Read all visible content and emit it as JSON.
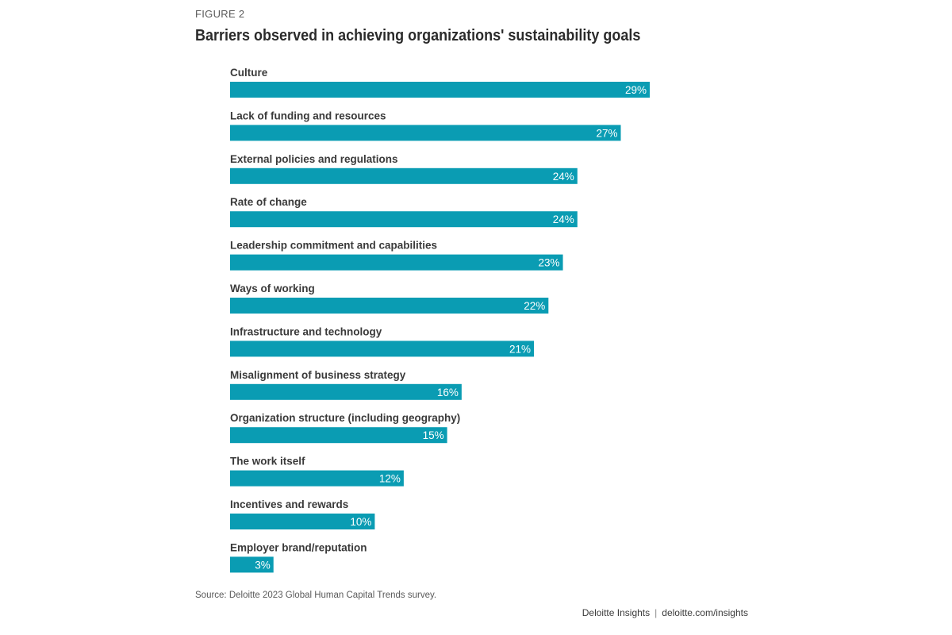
{
  "figure": {
    "label": "FIGURE 2",
    "title": "Barriers observed in achieving organizations' sustainability goals",
    "source": "Source: Deloitte 2023 Global Human Capital Trends survey.",
    "brand": "Deloitte Insights",
    "brand_url": "deloitte.com/insights"
  },
  "colors": {
    "bar": "#0a9cb3",
    "label_text": "#3a3a3a",
    "value_text": "#ffffff"
  },
  "chart_data": {
    "type": "bar",
    "orientation": "horizontal",
    "title": "Barriers observed in achieving organizations' sustainability goals",
    "xlabel": "",
    "ylabel": "",
    "xlim": [
      0,
      30
    ],
    "grid": false,
    "legend": "none",
    "categories": [
      "Culture",
      "Lack of funding and resources",
      "External policies and regulations",
      "Rate of change",
      "Leadership commitment and capabilities",
      "Ways of working",
      "Infrastructure and technology",
      "Misalignment of business strategy",
      "Organization structure (including geography)",
      "The work itself",
      "Incentives and rewards",
      "Employer brand/reputation"
    ],
    "values": [
      29,
      27,
      24,
      24,
      23,
      22,
      21,
      16,
      15,
      12,
      10,
      3
    ],
    "value_labels": [
      "29%",
      "27%",
      "24%",
      "24%",
      "23%",
      "22%",
      "21%",
      "16%",
      "15%",
      "12%",
      "10%",
      "3%"
    ]
  }
}
